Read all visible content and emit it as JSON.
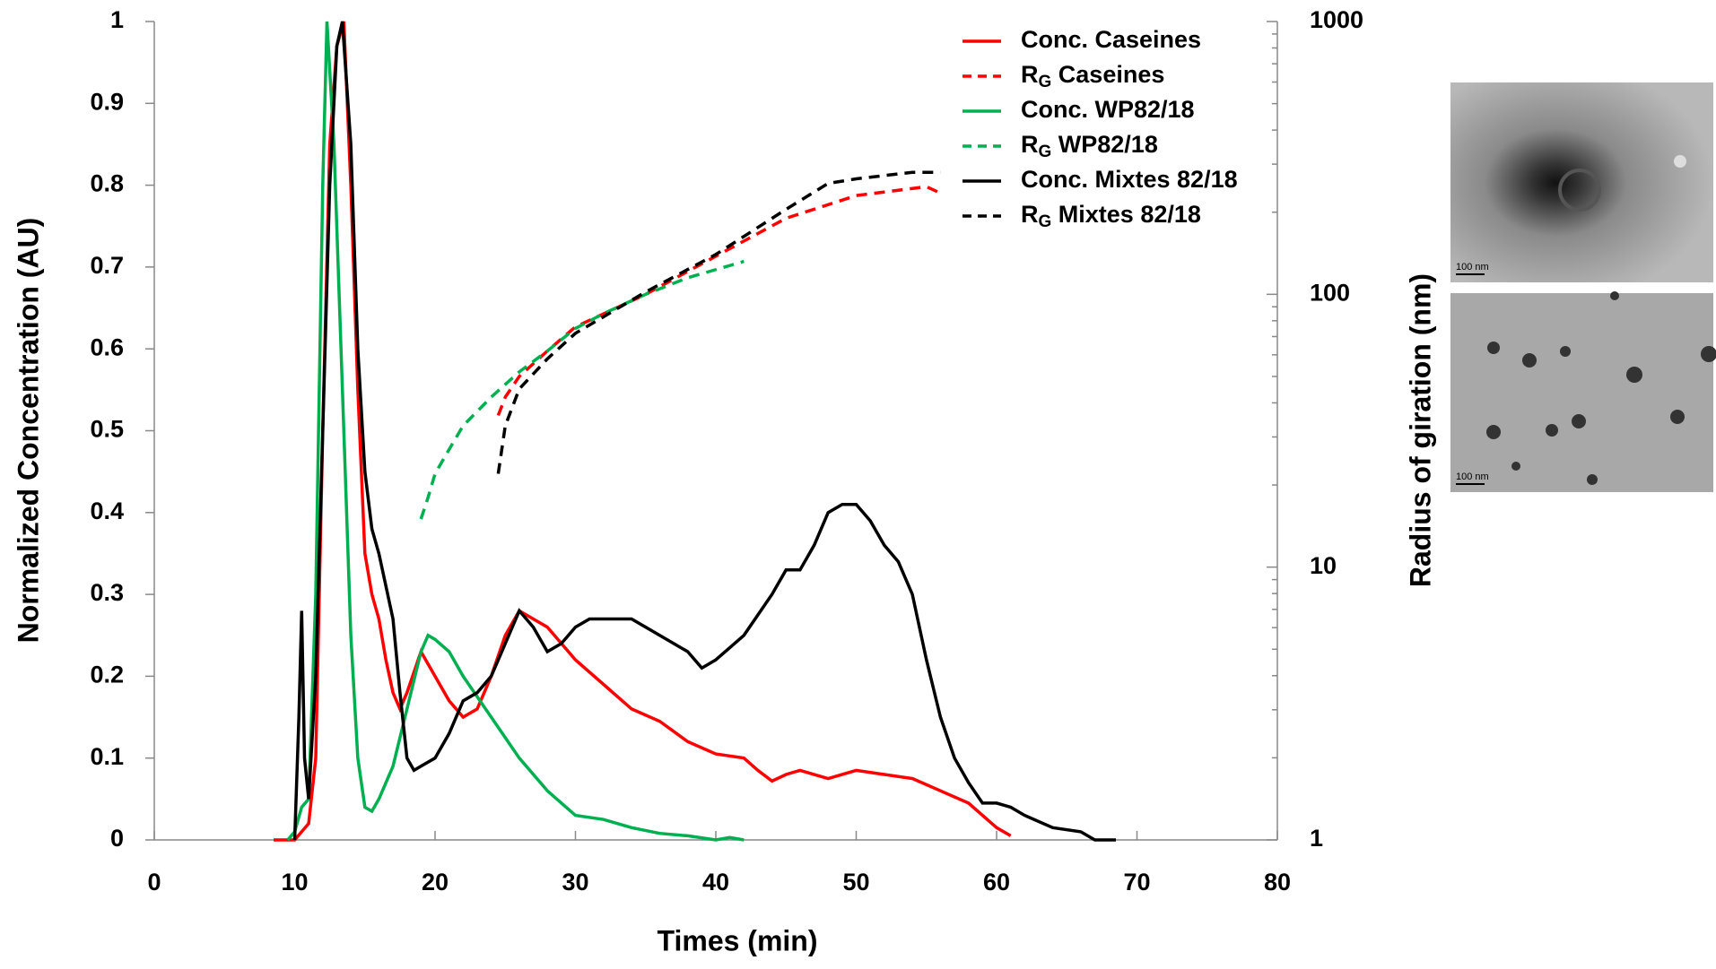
{
  "chart_data": {
    "type": "line",
    "xlabel": "Times (min)",
    "ylabel": "Normalized Concentration (AU)",
    "y2label": "Radius of giration (nm)",
    "xlim": [
      0,
      80
    ],
    "xticks": [
      0,
      10,
      20,
      30,
      40,
      50,
      60,
      70,
      80
    ],
    "ylim": [
      0,
      1
    ],
    "yticks": [
      0,
      0.1,
      0.2,
      0.3,
      0.4,
      0.5,
      0.6,
      0.7,
      0.8,
      0.9,
      1
    ],
    "y2lim": [
      1,
      1000
    ],
    "y2ticks": [
      1,
      10,
      100,
      1000
    ],
    "y2log": true,
    "legend": "upper right",
    "series": [
      {
        "name": "Conc. Caseines",
        "color": "#ff0000",
        "dash": false,
        "x": [
          8.5,
          10,
          11,
          11.5,
          12,
          12.5,
          13,
          13.5,
          14,
          14.5,
          15,
          15.5,
          16,
          16.5,
          17,
          17.5,
          18,
          19,
          20,
          21,
          22,
          23,
          24,
          25,
          26,
          27,
          28,
          30,
          32,
          34,
          36,
          38,
          40,
          42,
          43,
          44,
          45,
          46,
          48,
          50,
          52,
          54,
          56,
          58,
          59,
          60,
          61
        ],
        "values": [
          0,
          0,
          0.02,
          0.1,
          0.5,
          0.85,
          0.97,
          1.0,
          0.8,
          0.55,
          0.35,
          0.3,
          0.27,
          0.22,
          0.18,
          0.16,
          0.18,
          0.23,
          0.2,
          0.17,
          0.15,
          0.16,
          0.2,
          0.25,
          0.28,
          0.27,
          0.26,
          0.22,
          0.19,
          0.16,
          0.145,
          0.12,
          0.105,
          0.1,
          0.085,
          0.072,
          0.08,
          0.085,
          0.075,
          0.085,
          0.08,
          0.075,
          0.06,
          0.045,
          0.03,
          0.015,
          0.005
        ]
      },
      {
        "name": "RG Caseines",
        "color": "#ff0000",
        "dash": true,
        "axis": "y2",
        "x": [
          24.5,
          25,
          26,
          28,
          30,
          35,
          40,
          45,
          50,
          55,
          56
        ],
        "values": [
          36,
          42,
          50,
          62,
          76,
          100,
          138,
          190,
          230,
          248,
          235
        ]
      },
      {
        "name": "Conc. WP82/18",
        "color": "#00b050",
        "dash": false,
        "x": [
          9.5,
          10,
          10.5,
          11,
          11.5,
          12,
          12.3,
          12.8,
          13.5,
          14,
          14.5,
          15,
          15.5,
          16,
          17,
          18,
          19,
          19.5,
          20,
          21,
          22,
          24,
          26,
          28,
          30,
          32,
          34,
          36,
          38,
          40,
          41,
          42
        ],
        "values": [
          0,
          0.01,
          0.04,
          0.05,
          0.3,
          0.8,
          1.0,
          0.85,
          0.5,
          0.25,
          0.1,
          0.04,
          0.035,
          0.05,
          0.09,
          0.16,
          0.23,
          0.25,
          0.245,
          0.23,
          0.2,
          0.15,
          0.1,
          0.06,
          0.03,
          0.025,
          0.015,
          0.008,
          0.005,
          0,
          0.003,
          0
        ]
      },
      {
        "name": "RG WP82/18",
        "color": "#00b050",
        "dash": true,
        "axis": "y2",
        "x": [
          19,
          19.5,
          20,
          21,
          22,
          24,
          26,
          28,
          30,
          32,
          35,
          38,
          42
        ],
        "values": [
          15,
          18,
          22,
          27,
          33,
          42,
          52,
          62,
          75,
          85,
          100,
          115,
          132
        ]
      },
      {
        "name": "Conc. Mixtes 82/18",
        "color": "#000000",
        "dash": false,
        "x": [
          10,
          10.3,
          10.5,
          10.7,
          11,
          11.5,
          12,
          12.5,
          13,
          13.4,
          14,
          14.5,
          15,
          15.5,
          16,
          17,
          17.5,
          18,
          18.5,
          19,
          20,
          21,
          22,
          23,
          24,
          25,
          26,
          27,
          28,
          29,
          30,
          31,
          32,
          34,
          36,
          38,
          39,
          40,
          42,
          44,
          45,
          46,
          47,
          48,
          49,
          50,
          51,
          52,
          53,
          54,
          55,
          56,
          57,
          58,
          59,
          60,
          61,
          62,
          64,
          66,
          67,
          68.5
        ],
        "values": [
          0,
          0.15,
          0.28,
          0.1,
          0.05,
          0.2,
          0.5,
          0.8,
          0.97,
          1.0,
          0.85,
          0.6,
          0.45,
          0.38,
          0.35,
          0.27,
          0.18,
          0.1,
          0.085,
          0.09,
          0.1,
          0.13,
          0.17,
          0.18,
          0.2,
          0.24,
          0.28,
          0.26,
          0.23,
          0.24,
          0.26,
          0.27,
          0.27,
          0.27,
          0.25,
          0.23,
          0.21,
          0.22,
          0.25,
          0.3,
          0.33,
          0.33,
          0.36,
          0.4,
          0.41,
          0.41,
          0.39,
          0.36,
          0.34,
          0.3,
          0.22,
          0.15,
          0.1,
          0.07,
          0.045,
          0.045,
          0.04,
          0.03,
          0.015,
          0.01,
          0,
          0
        ]
      },
      {
        "name": "RG Mixtes 82/18",
        "color": "#000000",
        "dash": true,
        "axis": "y2",
        "x": [
          24.5,
          25,
          26,
          28,
          30,
          35,
          40,
          45,
          48,
          50,
          54,
          56
        ],
        "values": [
          22,
          33,
          45,
          58,
          72,
          102,
          140,
          205,
          255,
          265,
          280,
          280
        ]
      }
    ]
  },
  "images": [
    {
      "scale_label": "100 nm"
    },
    {
      "scale_label": "100 nm"
    }
  ]
}
